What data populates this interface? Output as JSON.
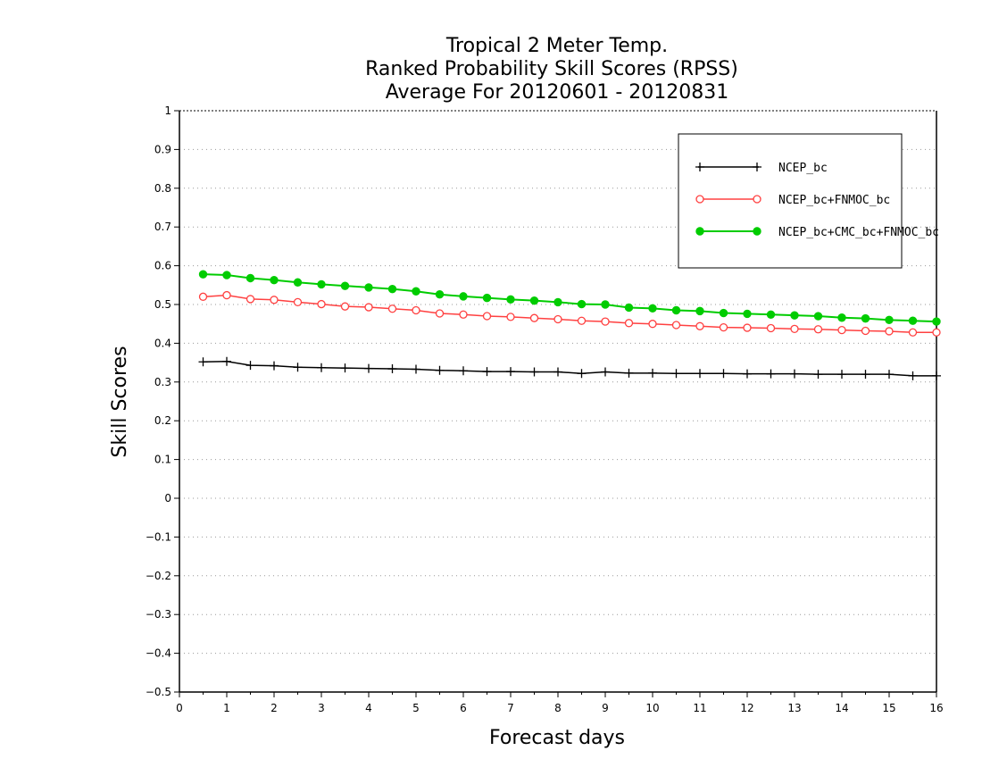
{
  "chart_data": {
    "type": "line",
    "title": "Tropical 2 Meter Temp.",
    "subtitle": "Ranked Probability Skill Scores (RPSS)",
    "period": "Average For 20120601 - 20120831",
    "xlabel": "Forecast days",
    "ylabel": "Skill Scores",
    "xlim": [
      0,
      16
    ],
    "ylim": [
      -0.5,
      1
    ],
    "x_ticks": [
      "0",
      "1",
      "2",
      "3",
      "4",
      "5",
      "6",
      "7",
      "8",
      "9",
      "10",
      "11",
      "12",
      "13",
      "14",
      "15",
      "16"
    ],
    "y_ticks": [
      "−0.5",
      "−0.4",
      "−0.3",
      "−0.2",
      "−0.1",
      "0",
      "0.1",
      "0.2",
      "0.3",
      "0.4",
      "0.5",
      "0.6",
      "0.7",
      "0.8",
      "0.9",
      "1"
    ],
    "grid": "horizontal dotted",
    "legend_position": "top-right",
    "x": [
      0.5,
      1,
      1.5,
      2,
      2.5,
      3,
      3.5,
      4,
      4.5,
      5,
      5.5,
      6,
      6.5,
      7,
      7.5,
      8,
      8.5,
      9,
      9.5,
      10,
      10.5,
      11,
      11.5,
      12,
      12.5,
      13,
      13.5,
      14,
      14.5,
      15,
      15.5,
      16
    ],
    "series": [
      {
        "name": "NCEP_bc",
        "color": "#000000",
        "marker": "plus",
        "values": [
          0.352,
          0.353,
          0.343,
          0.342,
          0.338,
          0.337,
          0.336,
          0.335,
          0.334,
          0.333,
          0.33,
          0.329,
          0.327,
          0.327,
          0.326,
          0.326,
          0.322,
          0.326,
          0.323,
          0.323,
          0.322,
          0.322,
          0.322,
          0.321,
          0.321,
          0.321,
          0.32,
          0.32,
          0.32,
          0.32,
          0.316,
          0.316
        ]
      },
      {
        "name": "NCEP_bc+FNMOC_bc",
        "color": "#ff4040",
        "marker": "open-circle",
        "values": [
          0.52,
          0.524,
          0.514,
          0.512,
          0.506,
          0.501,
          0.495,
          0.493,
          0.489,
          0.485,
          0.477,
          0.474,
          0.47,
          0.468,
          0.465,
          0.462,
          0.458,
          0.456,
          0.452,
          0.45,
          0.447,
          0.444,
          0.441,
          0.44,
          0.439,
          0.437,
          0.436,
          0.434,
          0.432,
          0.431,
          0.428,
          0.428
        ]
      },
      {
        "name": "NCEP_bc+CMC_bc+FNMOC_bc",
        "color": "#00cc00",
        "marker": "filled-circle",
        "values": [
          0.578,
          0.576,
          0.568,
          0.563,
          0.557,
          0.552,
          0.548,
          0.544,
          0.54,
          0.534,
          0.526,
          0.521,
          0.517,
          0.513,
          0.51,
          0.506,
          0.501,
          0.5,
          0.492,
          0.49,
          0.485,
          0.483,
          0.478,
          0.476,
          0.474,
          0.472,
          0.47,
          0.466,
          0.464,
          0.46,
          0.458,
          0.456
        ]
      }
    ]
  }
}
